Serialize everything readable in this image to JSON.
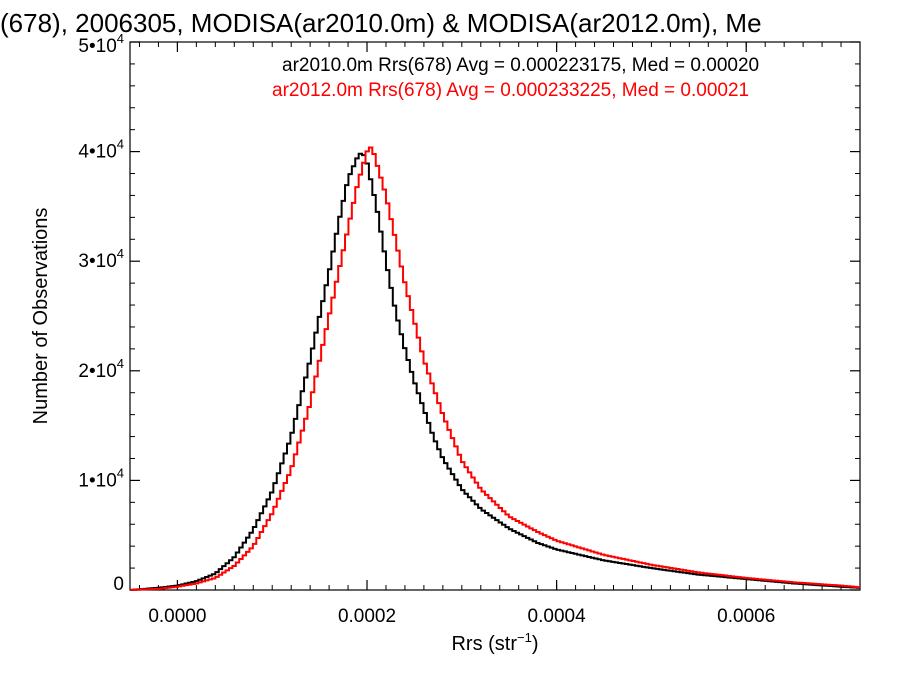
{
  "chart_data": {
    "type": "line",
    "title": "(678), 2006305, MODISA(ar2010.0m) & MODISA(ar2012.0m), Me",
    "xlabel": "Rrs (str",
    "xlabel_sup": "−1",
    "xlabel_tail": ")",
    "ylabel": "Number of Observations",
    "xlim": [
      -5e-05,
      0.00072
    ],
    "ylim": [
      0,
      50000
    ],
    "x_ticks": [
      0.0,
      0.0002,
      0.0004,
      0.0006
    ],
    "x_tick_labels": [
      "0.0000",
      "0.0002",
      "0.0004",
      "0.0006"
    ],
    "y_ticks": [
      0,
      10000,
      20000,
      30000,
      40000,
      50000
    ],
    "y_tick_labels": [
      {
        "base": "0",
        "exp": ""
      },
      {
        "base": "1•10",
        "exp": "4"
      },
      {
        "base": "2•10",
        "exp": "4"
      },
      {
        "base": "3•10",
        "exp": "4"
      },
      {
        "base": "4•10",
        "exp": "4"
      },
      {
        "base": "5•10",
        "exp": "4"
      }
    ],
    "annotations": [
      {
        "text": "ar2010.0m Rrs(678) Avg = 0.000223175, Med = 0.00020",
        "color": "#000000"
      },
      {
        "text": "ar2012.0m Rrs(678) Avg = 0.000233225, Med = 0.00021",
        "color": "#ff0000"
      }
    ],
    "series": [
      {
        "color": "#000000",
        "x": [
          -5e-05,
          -2e-05,
          0.0,
          2e-05,
          4e-05,
          6e-05,
          8e-05,
          0.0001,
          0.00012,
          0.00014,
          0.00016,
          0.00017,
          0.00018,
          0.00019,
          0.000195,
          0.0002,
          0.00021,
          0.00022,
          0.00023,
          0.00024,
          0.00025,
          0.00026,
          0.00027,
          0.00028,
          0.0003,
          0.00032,
          0.00035,
          0.00038,
          0.0004,
          0.00045,
          0.0005,
          0.00055,
          0.0006,
          0.00065,
          0.0007,
          0.00072
        ],
        "values": [
          0,
          200,
          400,
          800,
          1500,
          3000,
          5500,
          9000,
          14000,
          21000,
          29000,
          33500,
          37500,
          39500,
          40000,
          39000,
          35000,
          30000,
          25500,
          22000,
          19000,
          16500,
          14000,
          12000,
          9200,
          7400,
          5600,
          4300,
          3700,
          2700,
          2000,
          1400,
          1000,
          600,
          300,
          200
        ]
      },
      {
        "color": "#ff0000",
        "x": [
          -5e-05,
          -2e-05,
          0.0,
          2e-05,
          4e-05,
          6e-05,
          8e-05,
          0.0001,
          0.00012,
          0.00014,
          0.00016,
          0.00018,
          0.00019,
          0.0002,
          0.000205,
          0.00021,
          0.00022,
          0.00023,
          0.00024,
          0.00025,
          0.00026,
          0.00027,
          0.00028,
          0.0003,
          0.00032,
          0.00035,
          0.00038,
          0.0004,
          0.00045,
          0.0005,
          0.00055,
          0.0006,
          0.00065,
          0.0007,
          0.00072
        ],
        "values": [
          0,
          100,
          300,
          600,
          1100,
          2200,
          4000,
          7000,
          11000,
          17000,
          25000,
          33000,
          37000,
          40000,
          40500,
          39000,
          36000,
          32000,
          28000,
          24500,
          21000,
          18500,
          16000,
          11800,
          9200,
          6700,
          5300,
          4500,
          3200,
          2300,
          1600,
          1100,
          700,
          400,
          250
        ]
      }
    ]
  }
}
